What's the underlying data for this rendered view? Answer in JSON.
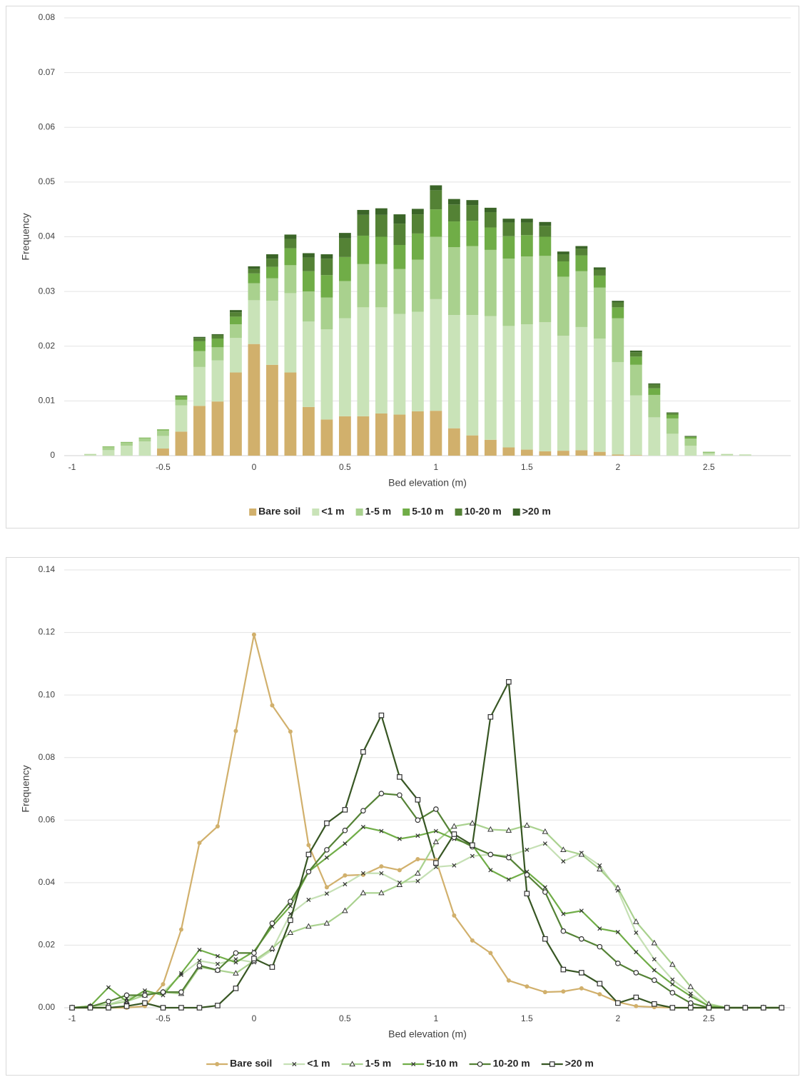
{
  "chart_data": [
    {
      "type": "stacked_bar",
      "xlabel": "Bed elevation (m)",
      "ylabel": "Frequency",
      "xlim": [
        -1,
        2.95
      ],
      "xticks": [
        -1,
        -0.5,
        0,
        0.5,
        1,
        1.5,
        2,
        2.5
      ],
      "ylim": [
        0,
        0.08
      ],
      "yticks": [
        0,
        0.01,
        0.02,
        0.03,
        0.04,
        0.05,
        0.06,
        0.07,
        0.08
      ],
      "grid": true,
      "legend": "bottom",
      "x": [
        -0.9,
        -0.8,
        -0.7,
        -0.6,
        -0.5,
        -0.4,
        -0.3,
        -0.2,
        -0.1,
        0,
        0.1,
        0.2,
        0.3,
        0.4,
        0.5,
        0.6,
        0.7,
        0.8,
        0.9,
        1,
        1.1,
        1.2,
        1.3,
        1.4,
        1.5,
        1.6,
        1.7,
        1.8,
        1.9,
        2,
        2.1,
        2.2,
        2.3,
        2.4,
        2.5,
        2.6,
        2.7
      ],
      "series": [
        {
          "name": "Bare soil",
          "color": "#d1b06c",
          "values": [
            0,
            0,
            0,
            0,
            0.0013,
            0.0044,
            0.0091,
            0.0099,
            0.0152,
            0.0204,
            0.0166,
            0.0152,
            0.0089,
            0.0066,
            0.0072,
            0.0072,
            0.0077,
            0.0075,
            0.0081,
            0.0082,
            0.005,
            0.0037,
            0.0029,
            0.0015,
            0.0011,
            0.0008,
            0.0009,
            0.001,
            0.0007,
            0.0002,
            0.0001,
            0,
            0,
            0,
            0,
            0,
            0
          ]
        },
        {
          "name": "<1 m",
          "color": "#c9e3b8",
          "values": [
            0.0002,
            0.001,
            0.0018,
            0.0026,
            0.0023,
            0.0048,
            0.0071,
            0.0075,
            0.0063,
            0.008,
            0.0117,
            0.0145,
            0.0156,
            0.0165,
            0.0179,
            0.0199,
            0.0194,
            0.0184,
            0.0182,
            0.0204,
            0.0207,
            0.022,
            0.0226,
            0.0222,
            0.0229,
            0.0236,
            0.021,
            0.0225,
            0.0207,
            0.0169,
            0.0109,
            0.007,
            0.004,
            0.0018,
            0.0004,
            0.0002,
            0.0001
          ]
        },
        {
          "name": "1-5 m",
          "color": "#a9d18e",
          "values": [
            0.0001,
            0.0006,
            0.0006,
            0.0006,
            0.001,
            0.001,
            0.0029,
            0.0024,
            0.0025,
            0.0031,
            0.0041,
            0.0051,
            0.0055,
            0.0058,
            0.0068,
            0.0079,
            0.0079,
            0.0082,
            0.0095,
            0.0114,
            0.0124,
            0.0126,
            0.0121,
            0.0123,
            0.0124,
            0.0121,
            0.0108,
            0.0102,
            0.0093,
            0.008,
            0.0056,
            0.0041,
            0.0028,
            0.0013,
            0.0002,
            0.0001,
            0.0001
          ]
        },
        {
          "name": "5-10 m",
          "color": "#70ad47",
          "values": [
            0,
            0.0001,
            0.0001,
            0.0001,
            0.0002,
            0.0006,
            0.0018,
            0.0016,
            0.0014,
            0.0018,
            0.0021,
            0.0031,
            0.0037,
            0.0041,
            0.0044,
            0.0052,
            0.005,
            0.0044,
            0.0048,
            0.005,
            0.0047,
            0.0046,
            0.0041,
            0.0041,
            0.0039,
            0.0035,
            0.0028,
            0.0029,
            0.0022,
            0.002,
            0.0015,
            0.0012,
            0.0007,
            0.0003,
            0.0001,
            0,
            0
          ]
        },
        {
          "name": "10-20 m",
          "color": "#548235",
          "values": [
            0,
            0,
            0,
            0,
            0,
            0.0002,
            0.0006,
            0.0006,
            0.0008,
            0.0008,
            0.0015,
            0.0017,
            0.0025,
            0.003,
            0.0034,
            0.0038,
            0.004,
            0.0039,
            0.0035,
            0.0035,
            0.0031,
            0.0029,
            0.0028,
            0.0025,
            0.0023,
            0.002,
            0.0013,
            0.0012,
            0.0011,
            0.0009,
            0.0008,
            0.0007,
            0.0003,
            0.0001,
            0,
            0,
            0
          ]
        },
        {
          "name": ">20 m",
          "color": "#3b6528",
          "values": [
            0,
            0,
            0,
            0,
            0,
            0,
            0.0002,
            0.0002,
            0.0004,
            0.0005,
            0.0008,
            0.0008,
            0.0008,
            0.0008,
            0.001,
            0.0009,
            0.0012,
            0.0017,
            0.001,
            0.0009,
            0.001,
            0.0009,
            0.0008,
            0.0007,
            0.0007,
            0.0007,
            0.0005,
            0.0005,
            0.0004,
            0.0003,
            0.0003,
            0.0002,
            0.0001,
            0.0001,
            0,
            0,
            0
          ]
        }
      ]
    },
    {
      "type": "line",
      "xlabel": "Bed elevation (m)",
      "ylabel": "Frequency",
      "xlim": [
        -1,
        2.95
      ],
      "xticks": [
        -1,
        -0.5,
        0,
        0.5,
        1,
        1.5,
        2,
        2.5
      ],
      "ylim": [
        0,
        0.14
      ],
      "yticks": [
        {
          "value": 0,
          "label": "0.00"
        },
        0.02,
        0.04,
        0.06,
        0.08,
        {
          "value": 0.1,
          "label": "0.10"
        },
        0.12,
        0.14
      ],
      "grid": true,
      "legend": "bottom",
      "x": [
        -1,
        -0.9,
        -0.8,
        -0.7,
        -0.6,
        -0.5,
        -0.4,
        -0.3,
        -0.2,
        -0.1,
        0,
        0.1,
        0.2,
        0.3,
        0.4,
        0.5,
        0.6,
        0.7,
        0.8,
        0.9,
        1,
        1.1,
        1.2,
        1.3,
        1.4,
        1.5,
        1.6,
        1.7,
        1.8,
        1.9,
        2,
        2.1,
        2.2,
        2.3,
        2.4,
        2.5,
        2.6,
        2.7,
        2.8,
        2.9
      ],
      "series": [
        {
          "name": "Bare soil",
          "color": "#d1b06c",
          "marker": "dot",
          "values": [
            0,
            0,
            0,
            0,
            0.0005,
            0.0075,
            0.025,
            0.0527,
            0.058,
            0.0885,
            0.1193,
            0.0967,
            0.0883,
            0.052,
            0.0385,
            0.0423,
            0.0425,
            0.0452,
            0.044,
            0.0475,
            0.0473,
            0.0295,
            0.0215,
            0.0175,
            0.0087,
            0.0068,
            0.005,
            0.0052,
            0.0062,
            0.0043,
            0.0018,
            0.0005,
            0.0002,
            0,
            0,
            0,
            0,
            0,
            0,
            0
          ]
        },
        {
          "name": "<1 m",
          "color": "#c5e0b4",
          "marker": "x",
          "values": [
            0,
            0.0005,
            0.001,
            0.003,
            0.0045,
            0.005,
            0.0105,
            0.015,
            0.014,
            0.0155,
            0.0145,
            0.0185,
            0.03,
            0.0345,
            0.0365,
            0.0395,
            0.043,
            0.043,
            0.04,
            0.0405,
            0.045,
            0.0455,
            0.0485,
            0.049,
            0.0485,
            0.0505,
            0.0525,
            0.0468,
            0.0495,
            0.0455,
            0.0375,
            0.024,
            0.0155,
            0.009,
            0.0045,
            0.0005,
            0,
            0,
            0,
            0
          ]
        },
        {
          "name": "1-5 m",
          "color": "#a9d18e",
          "marker": "triangle",
          "values": [
            0,
            0.0005,
            0.001,
            0.002,
            0.004,
            0.005,
            0.0045,
            0.013,
            0.012,
            0.011,
            0.015,
            0.019,
            0.024,
            0.026,
            0.027,
            0.031,
            0.0367,
            0.0367,
            0.0393,
            0.043,
            0.053,
            0.058,
            0.059,
            0.057,
            0.0567,
            0.0583,
            0.0563,
            0.0505,
            0.049,
            0.0443,
            0.0383,
            0.0275,
            0.0207,
            0.0138,
            0.0067,
            0.0012,
            0,
            0,
            0,
            0
          ]
        },
        {
          "name": "5-10 m",
          "color": "#70ad47",
          "marker": "x",
          "values": [
            0,
            0.0005,
            0.0065,
            0.002,
            0.0055,
            0.004,
            0.011,
            0.0185,
            0.0165,
            0.0145,
            0.018,
            0.026,
            0.0325,
            0.0435,
            0.048,
            0.0525,
            0.0578,
            0.0565,
            0.054,
            0.055,
            0.0565,
            0.054,
            0.052,
            0.044,
            0.041,
            0.0435,
            0.0385,
            0.03,
            0.031,
            0.0253,
            0.0242,
            0.0178,
            0.012,
            0.0075,
            0.0037,
            0.0005,
            0,
            0,
            0,
            0
          ]
        },
        {
          "name": "10-20 m",
          "color": "#548235",
          "marker": "circle",
          "values": [
            0,
            0.0003,
            0.002,
            0.004,
            0.004,
            0.005,
            0.005,
            0.0135,
            0.012,
            0.0175,
            0.0175,
            0.027,
            0.034,
            0.0435,
            0.0505,
            0.0567,
            0.063,
            0.0685,
            0.068,
            0.06,
            0.0635,
            0.0545,
            0.0515,
            0.049,
            0.048,
            0.0425,
            0.037,
            0.0245,
            0.022,
            0.0195,
            0.0142,
            0.0112,
            0.0088,
            0.0048,
            0.0015,
            0,
            0,
            0,
            0,
            0
          ]
        },
        {
          "name": ">20 m",
          "color": "#375623",
          "marker": "square",
          "values": [
            0,
            0,
            0,
            0.0005,
            0.0015,
            0,
            0,
            0,
            0.0007,
            0.0062,
            0.0157,
            0.013,
            0.028,
            0.049,
            0.059,
            0.0633,
            0.0818,
            0.0935,
            0.0738,
            0.0665,
            0.0463,
            0.0555,
            0.052,
            0.093,
            0.1042,
            0.0365,
            0.022,
            0.0122,
            0.0112,
            0.0077,
            0.0015,
            0.0033,
            0.0012,
            0,
            0,
            0,
            0,
            0,
            0,
            0
          ]
        }
      ]
    }
  ]
}
